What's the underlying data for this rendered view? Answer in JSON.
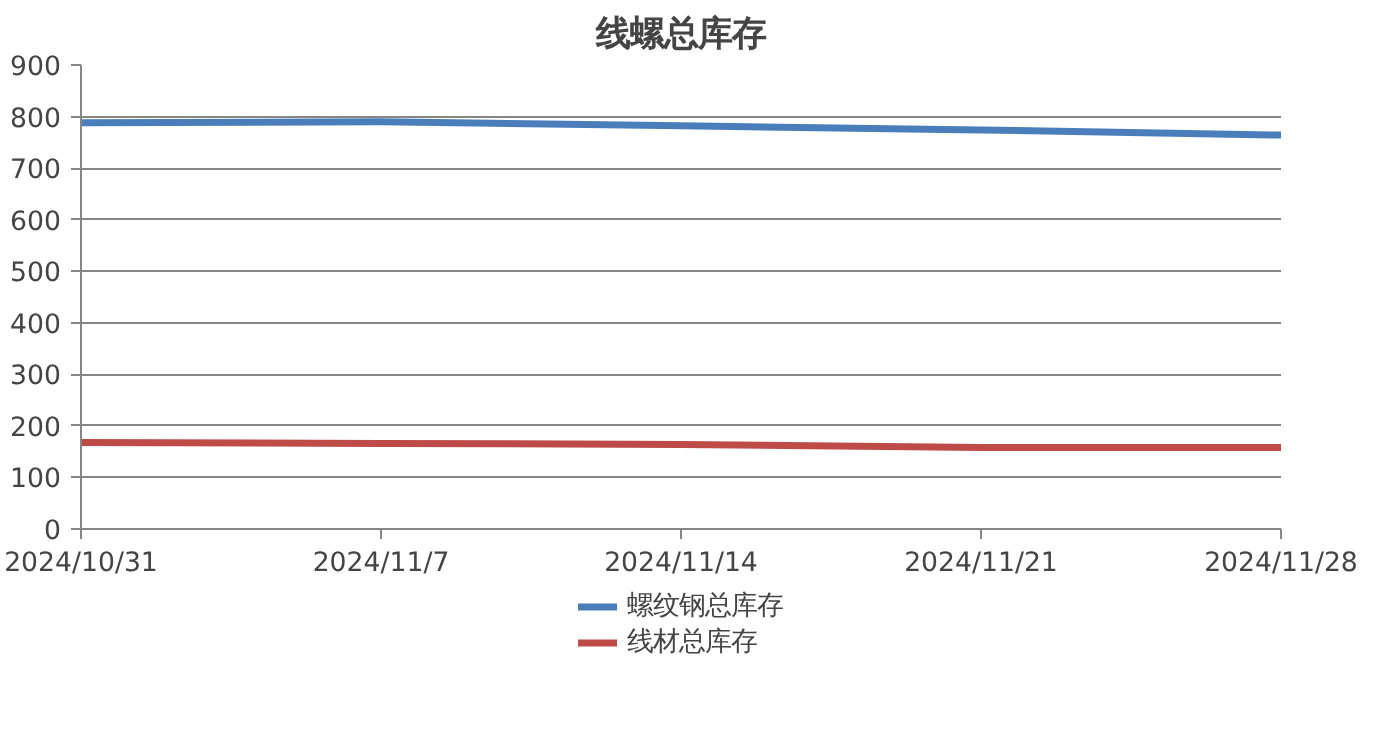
{
  "chart_data": {
    "type": "line",
    "title": "线螺总库存",
    "x": [
      "2024-10-31",
      "2024-11-07",
      "2024-11-14",
      "2024-11-21",
      "2024-11-28"
    ],
    "series": [
      {
        "name": "螺纹钢总库存",
        "color": "#4a7ebb",
        "values": [
          788,
          790,
          782,
          774,
          764
        ]
      },
      {
        "name": "线材总库存",
        "color": "#be4b48",
        "values": [
          168,
          166,
          164,
          158,
          158
        ]
      }
    ],
    "xlim": [
      "2024-10-31",
      "2024-11-28"
    ],
    "xticks": [
      {
        "value": "2024-10-31",
        "label": "2024/10/31"
      },
      {
        "value": "2024-11-07",
        "label": "2024/11/7"
      },
      {
        "value": "2024-11-14",
        "label": "2024/11/14"
      },
      {
        "value": "2024-11-21",
        "label": "2024/11/21"
      },
      {
        "value": "2024-11-28",
        "label": "2024/11/28"
      }
    ],
    "ylim": [
      0,
      900
    ],
    "yticks": [
      0,
      100,
      200,
      300,
      400,
      500,
      600,
      700,
      800,
      900
    ],
    "grid": "y",
    "legend": "bottom",
    "marker": "none",
    "line_style": "solid"
  }
}
